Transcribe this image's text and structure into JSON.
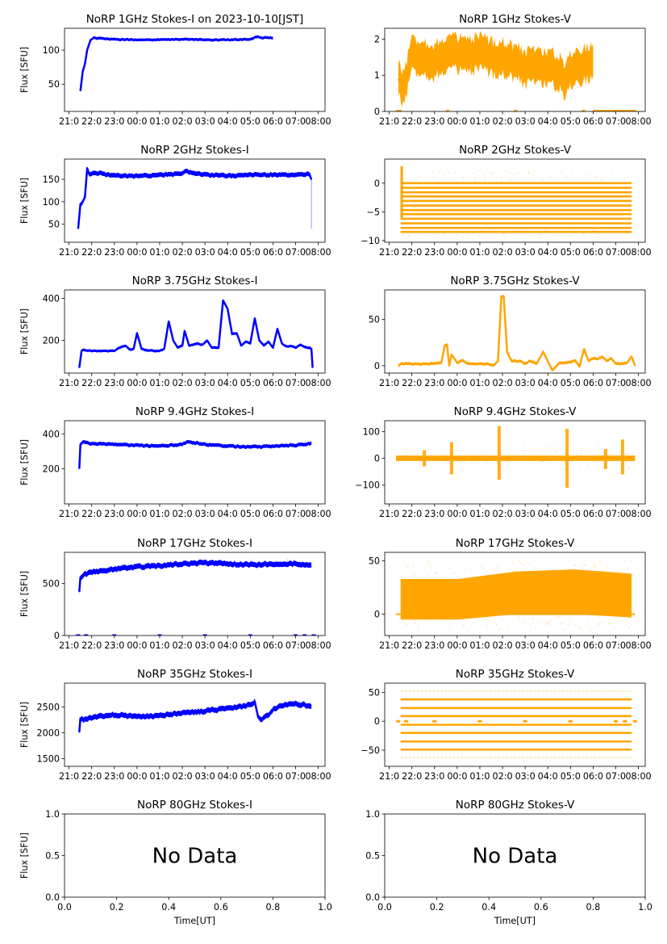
{
  "figure": {
    "colors": {
      "stokes_i": "#0000ff",
      "stokes_v": "#ffa500",
      "axes": "#000000"
    },
    "x_tick_labels": [
      "21:00",
      "22:00",
      "23:00",
      "00:00",
      "01:00",
      "02:00",
      "03:00",
      "04:00",
      "05:00",
      "06:00",
      "07:00",
      "08:00"
    ],
    "x_tick_labels_rendered_overlapping": [
      "21:0",
      "22:0",
      "23:0",
      "00:0",
      "01:0",
      "02:0",
      "03:0",
      "04:0",
      "05:0",
      "06:0",
      "07:0",
      "08:00"
    ]
  },
  "chart_data": [
    {
      "id": "1ghz-i",
      "type": "scatter",
      "title": "NoRP 1GHz Stokes-I on 2023-10-10[JST]",
      "ylabel": "Flux [SFU]",
      "xlabel": "",
      "ylim": [
        10,
        132
      ],
      "yticks": [
        50,
        100
      ],
      "xlim_hours": [
        20.8,
        32.3
      ],
      "color": "#0000ff",
      "series": [
        {
          "name": "Stokes-I",
          "x": [
            21.5,
            21.6,
            21.7,
            21.8,
            21.95,
            22.1,
            22.4,
            23,
            24,
            25,
            26,
            27,
            28,
            29,
            29.3,
            29.5,
            30.0
          ],
          "y": [
            40,
            68,
            80,
            100,
            115,
            118,
            117,
            116,
            115,
            115,
            116,
            115,
            115,
            116,
            120,
            118,
            118
          ],
          "spread": 2
        }
      ]
    },
    {
      "id": "1ghz-v",
      "type": "scatter",
      "title": "NoRP 1GHz Stokes-V",
      "ylabel": "",
      "xlabel": "",
      "ylim": [
        0,
        2.3
      ],
      "yticks": [
        0,
        1,
        2
      ],
      "xlim_hours": [
        20.8,
        32.3
      ],
      "color": "#ffa500",
      "series": [
        {
          "name": "Stokes-V",
          "x": [
            21.4,
            21.6,
            21.8,
            22,
            22.5,
            23,
            23.5,
            24,
            24.5,
            25,
            25.5,
            26,
            26.5,
            27,
            27.5,
            28,
            28.5,
            28.8,
            29,
            29.5,
            30
          ],
          "y": [
            0.9,
            0.6,
            1.0,
            1.6,
            1.5,
            1.4,
            1.6,
            1.6,
            1.5,
            1.6,
            1.5,
            1.5,
            1.4,
            1.2,
            1.3,
            1.2,
            1.1,
            0.8,
            1.2,
            1.3,
            1.4
          ],
          "spread": 0.45
        }
      ],
      "zero_segments": [
        [
          21.3,
          21.55
        ],
        [
          23.5,
          23.65
        ],
        [
          26.5,
          26.65
        ],
        [
          29.5,
          29.65
        ],
        [
          30.0,
          31.9
        ]
      ]
    },
    {
      "id": "2ghz-i",
      "type": "scatter",
      "title": "NoRP 2GHz Stokes-I",
      "ylabel": "Flux [SFU]",
      "xlabel": "",
      "ylim": [
        10,
        195
      ],
      "yticks": [
        50,
        100,
        150
      ],
      "xlim_hours": [
        20.8,
        32.3
      ],
      "color": "#0000ff",
      "series": [
        {
          "name": "Stokes-I",
          "x": [
            21.4,
            21.5,
            21.6,
            21.7,
            21.8,
            21.9,
            22.2,
            23,
            24,
            25,
            26,
            26.1,
            27,
            28,
            29,
            30,
            31,
            31.6,
            31.7
          ],
          "y": [
            40,
            95,
            100,
            110,
            175,
            160,
            165,
            158,
            157,
            160,
            162,
            168,
            160,
            158,
            160,
            160,
            160,
            162,
            150
          ],
          "spread": 5
        }
      ],
      "dropout": {
        "x": 31.7,
        "y": [
          40,
          150
        ]
      }
    },
    {
      "id": "2ghz-v",
      "type": "scatter",
      "title": "NoRP 2GHz Stokes-V",
      "ylabel": "",
      "xlabel": "",
      "ylim": [
        -10.3,
        4.2
      ],
      "yticks": [
        -10,
        -5,
        0
      ],
      "xlim_hours": [
        20.8,
        32.3
      ],
      "color": "#ffa500",
      "quantized_levels": [
        0,
        -0.8,
        -1.6,
        -2.3,
        -3.1,
        -3.9,
        -4.7,
        -5.4,
        -6.2,
        -7.0,
        -7.8,
        -8.5
      ],
      "x_range": [
        21.5,
        31.7
      ]
    },
    {
      "id": "3.75ghz-i",
      "type": "line",
      "title": "NoRP 3.75GHz Stokes-I",
      "ylabel": "Flux [SFU]",
      "xlabel": "",
      "ylim": [
        45,
        440
      ],
      "yticks": [
        200,
        400
      ],
      "xlim_hours": [
        20.8,
        32.3
      ],
      "color": "#0000ff",
      "series": [
        {
          "name": "Stokes-I",
          "x": [
            21.45,
            21.55,
            21.6,
            22,
            23,
            23.3,
            23.5,
            23.7,
            23.85,
            24.0,
            24.2,
            24.5,
            25.0,
            25.2,
            25.4,
            25.6,
            25.8,
            26.0,
            26.1,
            26.3,
            26.6,
            26.9,
            27.1,
            27.3,
            27.6,
            27.8,
            28.0,
            28.2,
            28.4,
            28.6,
            28.8,
            29.0,
            29.2,
            29.4,
            29.6,
            29.8,
            30.0,
            30.2,
            30.4,
            30.6,
            30.8,
            31.0,
            31.2,
            31.4,
            31.6,
            31.7,
            31.75
          ],
          "y": [
            70,
            150,
            155,
            150,
            150,
            170,
            175,
            155,
            160,
            235,
            160,
            152,
            150,
            160,
            290,
            200,
            165,
            175,
            245,
            175,
            185,
            180,
            200,
            165,
            165,
            390,
            350,
            230,
            235,
            175,
            195,
            185,
            305,
            200,
            175,
            195,
            165,
            255,
            185,
            170,
            175,
            165,
            180,
            170,
            165,
            160,
            70
          ],
          "spread": 6
        }
      ]
    },
    {
      "id": "3.75ghz-v",
      "type": "line",
      "title": "NoRP 3.75GHz Stokes-V",
      "ylabel": "",
      "xlabel": "",
      "ylim": [
        -8,
        82
      ],
      "yticks": [
        0,
        50
      ],
      "xlim_hours": [
        20.8,
        32.3
      ],
      "color": "#ffa500",
      "series": [
        {
          "name": "Stokes-V",
          "x": [
            21.4,
            21.5,
            22,
            23,
            23.3,
            23.45,
            23.55,
            23.65,
            23.75,
            24.0,
            24.2,
            24.5,
            25.0,
            25.3,
            25.6,
            25.8,
            25.95,
            26.05,
            26.2,
            26.4,
            26.8,
            27.0,
            27.2,
            27.5,
            27.8,
            28.0,
            28.2,
            28.5,
            28.8,
            29.0,
            29.2,
            29.4,
            29.6,
            29.8,
            30.0,
            30.2,
            30.4,
            30.6,
            30.8,
            31.0,
            31.2,
            31.5,
            31.7,
            31.85
          ],
          "y": [
            0,
            2,
            2,
            2,
            3,
            22,
            23,
            0,
            12,
            3,
            6,
            2,
            2,
            2,
            0,
            5,
            75,
            75,
            15,
            5,
            5,
            2,
            5,
            2,
            15,
            5,
            -5,
            3,
            3,
            4,
            6,
            -1,
            18,
            5,
            8,
            7,
            10,
            5,
            8,
            2,
            2,
            3,
            10,
            0
          ],
          "spread": 1.5
        }
      ]
    },
    {
      "id": "9.4ghz-i",
      "type": "scatter",
      "title": "NoRP 9.4GHz Stokes-I",
      "ylabel": "Flux [SFU]",
      "xlabel": "",
      "ylim": [
        0,
        475
      ],
      "yticks": [
        200,
        400
      ],
      "xlim_hours": [
        20.8,
        32.3
      ],
      "color": "#0000ff",
      "series": [
        {
          "name": "Stokes-I",
          "x": [
            21.45,
            21.5,
            21.6,
            22,
            23,
            24,
            25,
            26,
            26.2,
            27,
            28,
            29,
            30,
            31,
            31.7
          ],
          "y": [
            200,
            340,
            355,
            345,
            340,
            335,
            330,
            340,
            355,
            340,
            330,
            325,
            330,
            335,
            345
          ],
          "spread": 10
        }
      ]
    },
    {
      "id": "9.4ghz-v",
      "type": "scatter",
      "title": "NoRP 9.4GHz Stokes-V",
      "ylabel": "",
      "xlabel": "",
      "ylim": [
        -170,
        140
      ],
      "yticks": [
        -100,
        0,
        100
      ],
      "xlim_hours": [
        20.8,
        32.3
      ],
      "color": "#ffa500",
      "baseline": 0,
      "x_range": [
        21.3,
        31.85
      ],
      "spikes": [
        {
          "x": 22.55,
          "lo": -30,
          "hi": 30
        },
        {
          "x": 23.75,
          "lo": -60,
          "hi": 60
        },
        {
          "x": 25.85,
          "lo": -80,
          "hi": 120
        },
        {
          "x": 28.85,
          "lo": -110,
          "hi": 110
        },
        {
          "x": 30.55,
          "lo": -40,
          "hi": 35
        },
        {
          "x": 31.3,
          "lo": -60,
          "hi": 70
        }
      ]
    },
    {
      "id": "17ghz-i",
      "type": "scatter",
      "title": "NoRP 17GHz Stokes-I",
      "ylabel": "Flux [SFU]",
      "xlabel": "",
      "ylim": [
        0,
        800
      ],
      "yticks": [
        0,
        500
      ],
      "xlim_hours": [
        20.8,
        32.3
      ],
      "color": "#0000ff",
      "series": [
        {
          "name": "Stokes-I",
          "x": [
            21.45,
            21.5,
            21.7,
            22,
            23,
            24,
            25,
            26,
            27,
            28,
            29,
            30,
            31,
            31.7
          ],
          "y": [
            420,
            560,
            590,
            610,
            640,
            660,
            670,
            690,
            700,
            690,
            680,
            690,
            690,
            670
          ],
          "spread": 25
        }
      ],
      "zero_marks": [
        21.4,
        21.75,
        23.0,
        25.0,
        27.0,
        29.0,
        31.0,
        31.4,
        31.8
      ]
    },
    {
      "id": "17ghz-v",
      "type": "scatter",
      "title": "NoRP 17GHz Stokes-V",
      "ylabel": "",
      "xlabel": "",
      "ylim": [
        -20,
        58
      ],
      "yticks": [
        0,
        50
      ],
      "xlim_hours": [
        20.8,
        32.3
      ],
      "color": "#ffa500",
      "x_range": [
        21.5,
        31.7
      ],
      "band_low": [
        -5,
        -5,
        0,
        0,
        -3
      ],
      "band_high": [
        33,
        33,
        40,
        42,
        38
      ]
    },
    {
      "id": "35ghz-i",
      "type": "scatter",
      "title": "NoRP 35GHz Stokes-I",
      "ylabel": "Flux [SFU]",
      "xlabel": "",
      "ylim": [
        1350,
        2960
      ],
      "yticks": [
        1500,
        2000,
        2500
      ],
      "xlim_hours": [
        20.8,
        32.3
      ],
      "color": "#0000ff",
      "series": [
        {
          "name": "Stokes-I",
          "x": [
            21.45,
            21.5,
            21.6,
            22,
            23,
            24,
            25,
            26,
            27,
            28,
            28.5,
            29.0,
            29.2,
            29.35,
            29.5,
            29.8,
            30,
            30.5,
            31,
            31.5,
            31.7
          ],
          "y": [
            2010,
            2280,
            2250,
            2300,
            2350,
            2310,
            2330,
            2380,
            2420,
            2470,
            2500,
            2550,
            2600,
            2300,
            2250,
            2350,
            2450,
            2550,
            2560,
            2530,
            2510
          ],
          "spread": 50
        }
      ]
    },
    {
      "id": "35ghz-v",
      "type": "scatter",
      "title": "NoRP 35GHz Stokes-V",
      "ylabel": "",
      "xlabel": "",
      "ylim": [
        -78,
        66
      ],
      "yticks": [
        -50,
        0,
        50
      ],
      "xlim_hours": [
        20.8,
        32.3
      ],
      "color": "#ffa500",
      "quantized_levels": [
        38,
        23,
        9,
        -6,
        -20,
        -35,
        -49
      ],
      "faint_levels": [
        52,
        -63
      ],
      "x_range": [
        21.5,
        31.7
      ],
      "zero_marks": [
        21.4,
        21.75,
        23.0,
        25.0,
        27.0,
        29.0,
        31.0,
        31.4,
        31.85
      ]
    },
    {
      "id": "80ghz-i",
      "type": "scatter",
      "title": "NoRP 80GHz Stokes-I",
      "ylabel": "Flux [SFU]",
      "xlabel": "Time[UT]",
      "ylim": [
        0,
        1
      ],
      "xlim": [
        0,
        1
      ],
      "yticks": [
        "0.0",
        "0.5",
        "1.0"
      ],
      "xticks": [
        "0.0",
        "0.2",
        "0.4",
        "0.6",
        "0.8",
        "1.0"
      ],
      "annotation": "No Data",
      "series": []
    },
    {
      "id": "80ghz-v",
      "type": "scatter",
      "title": "NoRP 80GHz Stokes-V",
      "ylabel": "",
      "xlabel": "Time[UT]",
      "ylim": [
        0,
        1
      ],
      "xlim": [
        0,
        1
      ],
      "yticks": [
        "0.0",
        "0.5",
        "1.0"
      ],
      "xticks": [
        "0.0",
        "0.2",
        "0.4",
        "0.6",
        "0.8",
        "1.0"
      ],
      "annotation": "No Data",
      "series": []
    }
  ]
}
